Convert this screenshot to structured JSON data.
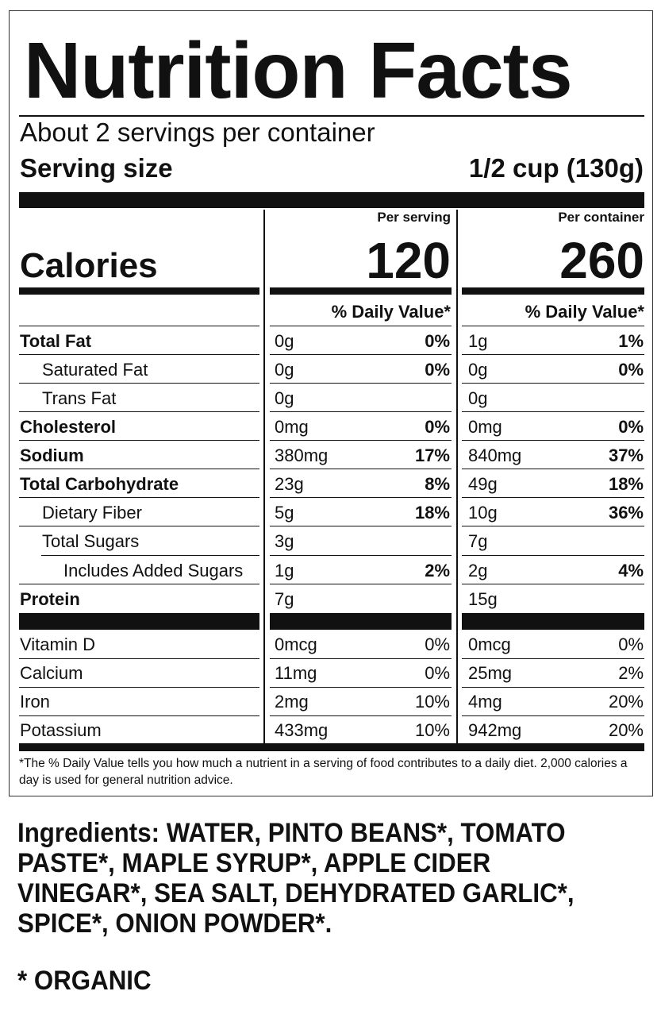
{
  "title": "Nutrition Facts",
  "servings_per_container": "About 2 servings per container",
  "serving_size": {
    "label": "Serving size",
    "value": "1/2 cup (130g)"
  },
  "calories": {
    "label": "Calories",
    "per_serving_label": "Per serving",
    "per_container_label": "Per container",
    "per_serving": "120",
    "per_container": "260"
  },
  "daily_value_header": "% Daily Value*",
  "nutrients": [
    {
      "name": "Total Fat",
      "amt1": "0g",
      "pct1": "0%",
      "amt2": "1g",
      "pct2": "1%"
    },
    {
      "name": "Saturated Fat",
      "amt1": "0g",
      "pct1": "0%",
      "amt2": "0g",
      "pct2": "0%"
    },
    {
      "name": "Trans Fat",
      "amt1": "0g",
      "pct1": "",
      "amt2": "0g",
      "pct2": ""
    },
    {
      "name": "Cholesterol",
      "amt1": "0mg",
      "pct1": "0%",
      "amt2": "0mg",
      "pct2": "0%"
    },
    {
      "name": "Sodium",
      "amt1": "380mg",
      "pct1": "17%",
      "amt2": "840mg",
      "pct2": "37%"
    },
    {
      "name": "Total Carbohydrate",
      "amt1": "23g",
      "pct1": "8%",
      "amt2": "49g",
      "pct2": "18%"
    },
    {
      "name": "Dietary Fiber",
      "amt1": "5g",
      "pct1": "18%",
      "amt2": "10g",
      "pct2": "36%"
    },
    {
      "name": "Total Sugars",
      "amt1": "3g",
      "pct1": "",
      "amt2": "7g",
      "pct2": ""
    },
    {
      "name": "Includes Added Sugars",
      "amt1": "1g",
      "pct1": "2%",
      "amt2": "2g",
      "pct2": "4%"
    },
    {
      "name": "Protein",
      "amt1": "7g",
      "pct1": "",
      "amt2": "15g",
      "pct2": ""
    }
  ],
  "vitamins": [
    {
      "name": "Vitamin D",
      "amt1": "0mcg",
      "pct1": "0%",
      "amt2": "0mcg",
      "pct2": "0%"
    },
    {
      "name": "Calcium",
      "amt1": "11mg",
      "pct1": "0%",
      "amt2": "25mg",
      "pct2": "2%"
    },
    {
      "name": "Iron",
      "amt1": "2mg",
      "pct1": "10%",
      "amt2": "4mg",
      "pct2": "20%"
    },
    {
      "name": "Potassium",
      "amt1": "433mg",
      "pct1": "10%",
      "amt2": "942mg",
      "pct2": "20%"
    }
  ],
  "footnote": "*The % Daily Value tells you how much a nutrient in a serving of food contributes to a daily diet. 2,000 calories a day is used for general nutrition advice.",
  "ingredients": "Ingredients:  WATER, PINTO BEANS*, TOMATO PASTE*, MAPLE SYRUP*, APPLE CIDER VINEGAR*, SEA SALT, DEHYDRATED GARLIC*, SPICE*, ONION POWDER*.",
  "organic_note": "* ORGANIC"
}
